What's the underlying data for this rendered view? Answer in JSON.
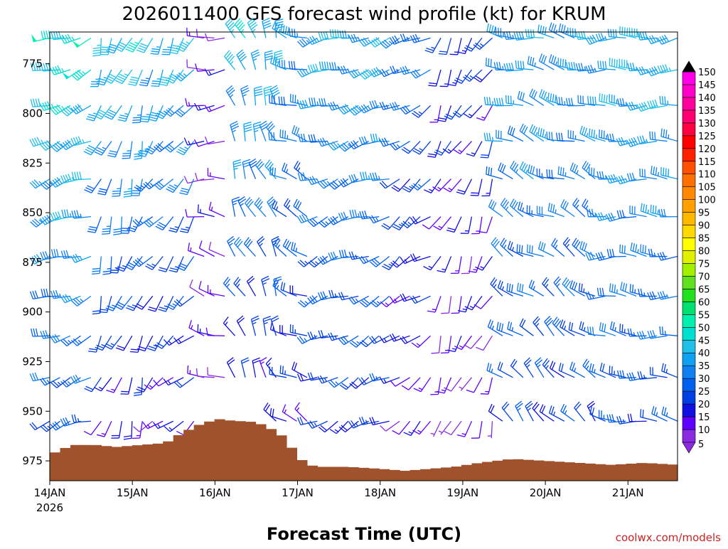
{
  "chart_data": {
    "type": "wind-barb-profile",
    "title": "2026011400 GFS forecast wind profile (kt) for KRUM",
    "xlabel": "Forecast Time (UTC)",
    "credit": "coolwx.com/models",
    "x_ticks": [
      "14JAN",
      "15JAN",
      "16JAN",
      "17JAN",
      "18JAN",
      "19JAN",
      "20JAN",
      "21JAN"
    ],
    "x_year": "2026",
    "xlim_days": [
      0,
      7.6
    ],
    "y_ticks": [
      775,
      800,
      825,
      850,
      875,
      900,
      925,
      950,
      975
    ],
    "ylim_hpa": [
      759,
      985
    ],
    "levels_hpa": [
      762,
      778,
      796,
      814,
      833,
      852,
      872,
      892,
      912,
      933,
      955,
      977
    ],
    "time_step_hours": 3,
    "wind_colorbar": {
      "labels": [
        5,
        10,
        15,
        20,
        25,
        30,
        35,
        40,
        45,
        50,
        55,
        60,
        65,
        70,
        75,
        80,
        85,
        90,
        95,
        100,
        105,
        110,
        115,
        120,
        125,
        130,
        135,
        140,
        145,
        150
      ],
      "colors": [
        "#8a2be2",
        "#6000ff",
        "#1010e0",
        "#0040e0",
        "#0060ee",
        "#1080f0",
        "#10a0f0",
        "#20c0e8",
        "#00e0d0",
        "#00f0b0",
        "#00e070",
        "#20e020",
        "#60e020",
        "#a0f000",
        "#e0f000",
        "#ffff00",
        "#ffd800",
        "#ffb800",
        "#ffa000",
        "#ff8800",
        "#ff7000",
        "#ff5000",
        "#ff2000",
        "#ff0000",
        "#ff0040",
        "#ff0070",
        "#ff00a0",
        "#ff00c8",
        "#ff00e8"
      ],
      "under_color": "#8a2be2",
      "over_color": "#000000"
    },
    "terrain": {
      "color": "#a0522d",
      "days": [
        0,
        0.15,
        0.3,
        0.55,
        0.8,
        1.1,
        1.4,
        1.6,
        1.85,
        2.05,
        2.25,
        2.4,
        2.6,
        2.8,
        3.0,
        3.1,
        3.3,
        3.6,
        4.0,
        4.3,
        4.6,
        4.9,
        5.2,
        5.6,
        6.0,
        6.4,
        6.8,
        7.2,
        7.6
      ],
      "surface_hpa": [
        972,
        969,
        967,
        967,
        968,
        967,
        966,
        961,
        956,
        954,
        955,
        955,
        957,
        962,
        972,
        977,
        978,
        978,
        979,
        980,
        979,
        978,
        976,
        974,
        975,
        976,
        977,
        976,
        977
      ]
    },
    "wind_regimes": [
      {
        "until_day": 0.55,
        "upper_dir": 250,
        "lower_dir": 250,
        "upper_kt": 47,
        "lower_kt": 22
      },
      {
        "until_day": 1.15,
        "upper_dir": 200,
        "lower_dir": 200,
        "upper_kt": 42,
        "lower_kt": 12
      },
      {
        "until_day": 1.75,
        "upper_dir": 210,
        "lower_dir": 230,
        "upper_kt": 40,
        "lower_kt": 10
      },
      {
        "until_day": 2.2,
        "upper_dir": 260,
        "lower_dir": 300,
        "upper_kt": 12,
        "lower_kt": 12
      },
      {
        "until_day": 2.75,
        "upper_dir": 340,
        "lower_dir": 330,
        "upper_kt": 42,
        "lower_kt": 12
      },
      {
        "until_day": 3.15,
        "upper_dir": 290,
        "lower_dir": 300,
        "upper_kt": 35,
        "lower_kt": 15
      },
      {
        "until_day": 4.2,
        "upper_dir": 255,
        "lower_dir": 240,
        "upper_kt": 38,
        "lower_kt": 18
      },
      {
        "until_day": 4.7,
        "upper_dir": 240,
        "lower_dir": 230,
        "upper_kt": 30,
        "lower_kt": 10
      },
      {
        "until_day": 5.4,
        "upper_dir": 210,
        "lower_dir": 200,
        "upper_kt": 20,
        "lower_kt": 8
      },
      {
        "until_day": 6.7,
        "upper_dir": 280,
        "lower_dir": 320,
        "upper_kt": 37,
        "lower_kt": 20
      },
      {
        "until_day": 7.6,
        "upper_dir": 265,
        "lower_dir": 280,
        "upper_kt": 40,
        "lower_kt": 22
      }
    ]
  }
}
